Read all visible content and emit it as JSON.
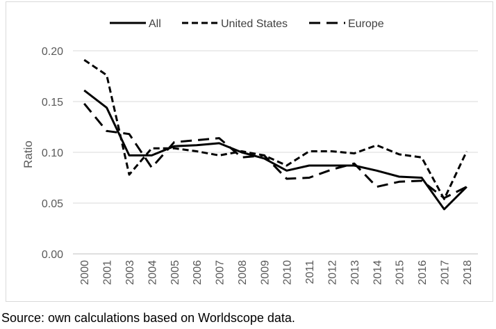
{
  "chart_data": {
    "type": "line",
    "title": "",
    "xlabel": "",
    "ylabel": "Ratio",
    "ylim": [
      0,
      0.2
    ],
    "yticks": [
      "0.00",
      "0.05",
      "0.10",
      "0.15",
      "0.20"
    ],
    "grid": "horizontal",
    "legend_position": "top",
    "x": [
      "2000",
      "2001",
      "2003",
      "2004",
      "2005",
      "2006",
      "2007",
      "2008",
      "2009",
      "2010",
      "2011",
      "2012",
      "2013",
      "2014",
      "2015",
      "2016",
      "2017",
      "2018"
    ],
    "series": [
      {
        "name": "All",
        "style": "solid",
        "values": [
          0.161,
          0.144,
          0.097,
          0.097,
          0.106,
          0.107,
          0.109,
          0.1,
          0.094,
          0.082,
          0.087,
          0.087,
          0.087,
          0.082,
          0.076,
          0.075,
          0.044,
          0.066
        ]
      },
      {
        "name": "United States",
        "style": "dashed",
        "values": [
          0.191,
          0.176,
          0.078,
          0.104,
          0.104,
          0.101,
          0.097,
          0.101,
          0.097,
          0.087,
          0.101,
          0.101,
          0.099,
          0.107,
          0.098,
          0.095,
          0.054,
          0.101
        ]
      },
      {
        "name": "Europe",
        "style": "long-dashed",
        "values": [
          0.148,
          0.121,
          0.118,
          0.085,
          0.11,
          0.112,
          0.114,
          0.095,
          0.097,
          0.074,
          0.075,
          0.083,
          0.089,
          0.066,
          0.071,
          0.072,
          0.055,
          0.066
        ]
      }
    ]
  },
  "source_note": "Source: own calculations based on Worldscope data.",
  "colors": {
    "line": "#000000",
    "grid": "#d9d9d9",
    "axis": "#bfbfbf",
    "text": "#595959"
  }
}
